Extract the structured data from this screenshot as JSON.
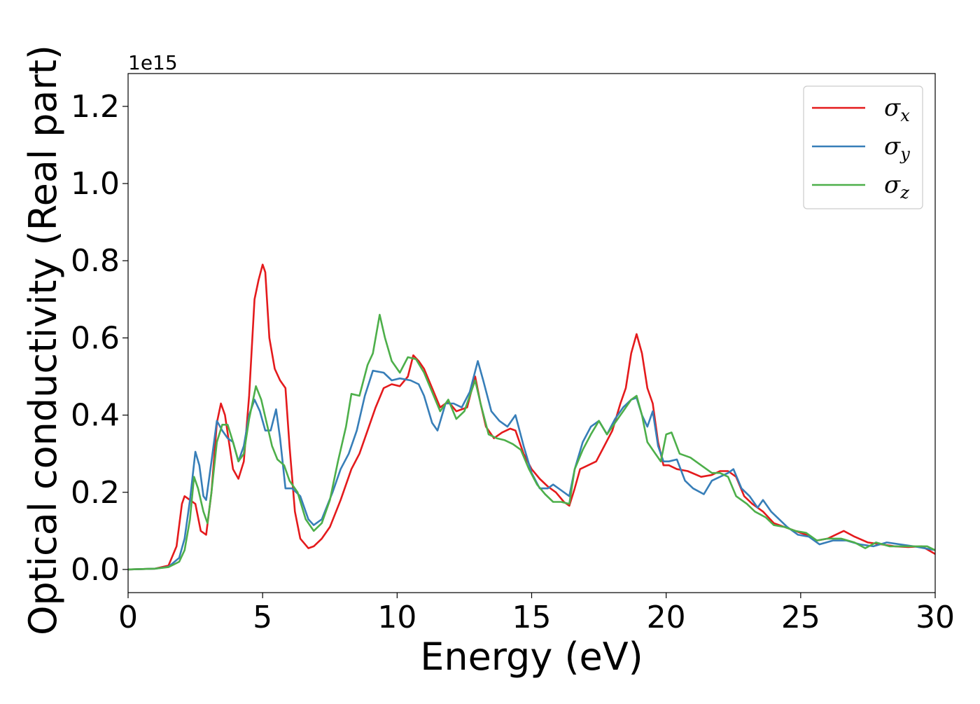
{
  "chart_data": {
    "type": "line",
    "title": "",
    "xlabel": "Energy (eV)",
    "ylabel": "Optical conductivity (Real part)",
    "y_offset_label": "1e15",
    "xlim": [
      0,
      30
    ],
    "ylim": [
      -0.06,
      1.285
    ],
    "x_ticks": [
      0,
      5,
      10,
      15,
      20,
      25,
      30
    ],
    "x_tick_labels": [
      "0",
      "5",
      "10",
      "15",
      "20",
      "25",
      "30"
    ],
    "y_ticks": [
      0.0,
      0.2,
      0.4,
      0.6,
      0.8,
      1.0,
      1.2
    ],
    "y_tick_labels": [
      "0.0",
      "0.2",
      "0.4",
      "0.6",
      "0.8",
      "1.0",
      "1.2"
    ],
    "grid": false,
    "legend_position": "top-right",
    "series": [
      {
        "name": "σx",
        "legend_main": "σ",
        "legend_sub": "x",
        "color": "#e41a1c",
        "points": [
          [
            0,
            0
          ],
          [
            1.0,
            0.002
          ],
          [
            1.5,
            0.01
          ],
          [
            1.8,
            0.06
          ],
          [
            2.0,
            0.17
          ],
          [
            2.1,
            0.19
          ],
          [
            2.3,
            0.18
          ],
          [
            2.5,
            0.17
          ],
          [
            2.7,
            0.1
          ],
          [
            2.9,
            0.09
          ],
          [
            3.1,
            0.2
          ],
          [
            3.3,
            0.38
          ],
          [
            3.45,
            0.43
          ],
          [
            3.6,
            0.4
          ],
          [
            3.75,
            0.33
          ],
          [
            3.9,
            0.26
          ],
          [
            4.1,
            0.235
          ],
          [
            4.3,
            0.28
          ],
          [
            4.5,
            0.45
          ],
          [
            4.7,
            0.7
          ],
          [
            4.85,
            0.75
          ],
          [
            5.0,
            0.79
          ],
          [
            5.1,
            0.77
          ],
          [
            5.25,
            0.6
          ],
          [
            5.45,
            0.52
          ],
          [
            5.65,
            0.49
          ],
          [
            5.85,
            0.47
          ],
          [
            6.0,
            0.32
          ],
          [
            6.2,
            0.15
          ],
          [
            6.4,
            0.08
          ],
          [
            6.7,
            0.055
          ],
          [
            6.9,
            0.06
          ],
          [
            7.2,
            0.08
          ],
          [
            7.5,
            0.11
          ],
          [
            7.9,
            0.18
          ],
          [
            8.3,
            0.26
          ],
          [
            8.6,
            0.3
          ],
          [
            8.9,
            0.36
          ],
          [
            9.2,
            0.42
          ],
          [
            9.5,
            0.47
          ],
          [
            9.8,
            0.48
          ],
          [
            10.1,
            0.475
          ],
          [
            10.4,
            0.5
          ],
          [
            10.6,
            0.555
          ],
          [
            10.8,
            0.54
          ],
          [
            11.0,
            0.52
          ],
          [
            11.3,
            0.47
          ],
          [
            11.6,
            0.42
          ],
          [
            11.9,
            0.435
          ],
          [
            12.2,
            0.41
          ],
          [
            12.6,
            0.42
          ],
          [
            12.9,
            0.5
          ],
          [
            13.1,
            0.43
          ],
          [
            13.3,
            0.37
          ],
          [
            13.6,
            0.34
          ],
          [
            13.9,
            0.355
          ],
          [
            14.2,
            0.365
          ],
          [
            14.4,
            0.36
          ],
          [
            14.7,
            0.3
          ],
          [
            15.0,
            0.26
          ],
          [
            15.3,
            0.235
          ],
          [
            15.6,
            0.215
          ],
          [
            15.9,
            0.2
          ],
          [
            16.2,
            0.175
          ],
          [
            16.4,
            0.165
          ],
          [
            16.6,
            0.21
          ],
          [
            16.8,
            0.26
          ],
          [
            17.1,
            0.27
          ],
          [
            17.4,
            0.28
          ],
          [
            17.7,
            0.32
          ],
          [
            18.0,
            0.36
          ],
          [
            18.3,
            0.43
          ],
          [
            18.5,
            0.47
          ],
          [
            18.7,
            0.56
          ],
          [
            18.9,
            0.61
          ],
          [
            19.1,
            0.56
          ],
          [
            19.3,
            0.47
          ],
          [
            19.5,
            0.43
          ],
          [
            19.7,
            0.33
          ],
          [
            19.9,
            0.27
          ],
          [
            20.1,
            0.27
          ],
          [
            20.4,
            0.26
          ],
          [
            20.8,
            0.255
          ],
          [
            21.3,
            0.24
          ],
          [
            21.7,
            0.245
          ],
          [
            22.0,
            0.255
          ],
          [
            22.3,
            0.255
          ],
          [
            22.6,
            0.24
          ],
          [
            22.9,
            0.19
          ],
          [
            23.2,
            0.17
          ],
          [
            23.6,
            0.15
          ],
          [
            24.0,
            0.12
          ],
          [
            24.4,
            0.11
          ],
          [
            24.8,
            0.1
          ],
          [
            25.2,
            0.09
          ],
          [
            25.6,
            0.075
          ],
          [
            26.0,
            0.08
          ],
          [
            26.6,
            0.1
          ],
          [
            27.0,
            0.085
          ],
          [
            27.5,
            0.07
          ],
          [
            28.0,
            0.065
          ],
          [
            28.5,
            0.06
          ],
          [
            29.0,
            0.058
          ],
          [
            29.5,
            0.06
          ],
          [
            30.0,
            0.04
          ]
        ]
      },
      {
        "name": "σy",
        "legend_main": "σ",
        "legend_sub": "y",
        "color": "#377eb8",
        "points": [
          [
            0,
            0
          ],
          [
            1.0,
            0.002
          ],
          [
            1.5,
            0.007
          ],
          [
            1.9,
            0.03
          ],
          [
            2.1,
            0.08
          ],
          [
            2.3,
            0.18
          ],
          [
            2.5,
            0.305
          ],
          [
            2.65,
            0.27
          ],
          [
            2.8,
            0.19
          ],
          [
            2.9,
            0.18
          ],
          [
            3.1,
            0.28
          ],
          [
            3.3,
            0.385
          ],
          [
            3.5,
            0.36
          ],
          [
            3.7,
            0.34
          ],
          [
            3.9,
            0.33
          ],
          [
            4.1,
            0.28
          ],
          [
            4.3,
            0.32
          ],
          [
            4.5,
            0.4
          ],
          [
            4.7,
            0.44
          ],
          [
            4.9,
            0.41
          ],
          [
            5.1,
            0.36
          ],
          [
            5.3,
            0.36
          ],
          [
            5.5,
            0.415
          ],
          [
            5.65,
            0.34
          ],
          [
            5.85,
            0.21
          ],
          [
            6.1,
            0.21
          ],
          [
            6.4,
            0.19
          ],
          [
            6.7,
            0.13
          ],
          [
            6.9,
            0.115
          ],
          [
            7.2,
            0.13
          ],
          [
            7.6,
            0.2
          ],
          [
            7.9,
            0.26
          ],
          [
            8.2,
            0.3
          ],
          [
            8.5,
            0.36
          ],
          [
            8.8,
            0.45
          ],
          [
            9.1,
            0.515
          ],
          [
            9.5,
            0.51
          ],
          [
            9.8,
            0.49
          ],
          [
            10.1,
            0.495
          ],
          [
            10.5,
            0.49
          ],
          [
            10.8,
            0.48
          ],
          [
            11.0,
            0.45
          ],
          [
            11.3,
            0.38
          ],
          [
            11.5,
            0.36
          ],
          [
            11.8,
            0.43
          ],
          [
            12.1,
            0.43
          ],
          [
            12.4,
            0.42
          ],
          [
            12.7,
            0.46
          ],
          [
            13.0,
            0.54
          ],
          [
            13.2,
            0.49
          ],
          [
            13.5,
            0.41
          ],
          [
            13.8,
            0.385
          ],
          [
            14.1,
            0.37
          ],
          [
            14.4,
            0.4
          ],
          [
            14.7,
            0.32
          ],
          [
            15.0,
            0.25
          ],
          [
            15.3,
            0.21
          ],
          [
            15.6,
            0.21
          ],
          [
            15.8,
            0.22
          ],
          [
            16.1,
            0.205
          ],
          [
            16.4,
            0.19
          ],
          [
            16.6,
            0.26
          ],
          [
            16.9,
            0.33
          ],
          [
            17.2,
            0.37
          ],
          [
            17.5,
            0.385
          ],
          [
            17.8,
            0.35
          ],
          [
            18.1,
            0.39
          ],
          [
            18.4,
            0.42
          ],
          [
            18.7,
            0.44
          ],
          [
            18.9,
            0.445
          ],
          [
            19.1,
            0.4
          ],
          [
            19.3,
            0.37
          ],
          [
            19.5,
            0.41
          ],
          [
            19.7,
            0.32
          ],
          [
            19.9,
            0.28
          ],
          [
            20.1,
            0.28
          ],
          [
            20.4,
            0.285
          ],
          [
            20.7,
            0.23
          ],
          [
            21.0,
            0.21
          ],
          [
            21.4,
            0.195
          ],
          [
            21.7,
            0.23
          ],
          [
            22.0,
            0.24
          ],
          [
            22.3,
            0.25
          ],
          [
            22.5,
            0.26
          ],
          [
            22.8,
            0.21
          ],
          [
            23.1,
            0.19
          ],
          [
            23.4,
            0.16
          ],
          [
            23.6,
            0.18
          ],
          [
            23.9,
            0.15
          ],
          [
            24.2,
            0.13
          ],
          [
            24.5,
            0.11
          ],
          [
            24.9,
            0.09
          ],
          [
            25.3,
            0.085
          ],
          [
            25.7,
            0.065
          ],
          [
            26.2,
            0.075
          ],
          [
            26.7,
            0.075
          ],
          [
            27.2,
            0.065
          ],
          [
            27.7,
            0.06
          ],
          [
            28.2,
            0.07
          ],
          [
            28.7,
            0.065
          ],
          [
            29.2,
            0.06
          ],
          [
            29.6,
            0.055
          ],
          [
            30.0,
            0.05
          ]
        ]
      },
      {
        "name": "σz",
        "legend_main": "σ",
        "legend_sub": "z",
        "color": "#4daf4a",
        "points": [
          [
            0,
            0
          ],
          [
            1.0,
            0.002
          ],
          [
            1.5,
            0.006
          ],
          [
            1.9,
            0.02
          ],
          [
            2.1,
            0.05
          ],
          [
            2.3,
            0.13
          ],
          [
            2.45,
            0.24
          ],
          [
            2.6,
            0.21
          ],
          [
            2.8,
            0.15
          ],
          [
            2.95,
            0.12
          ],
          [
            3.1,
            0.2
          ],
          [
            3.3,
            0.33
          ],
          [
            3.5,
            0.375
          ],
          [
            3.7,
            0.375
          ],
          [
            3.9,
            0.33
          ],
          [
            4.1,
            0.28
          ],
          [
            4.3,
            0.3
          ],
          [
            4.5,
            0.39
          ],
          [
            4.75,
            0.475
          ],
          [
            4.95,
            0.44
          ],
          [
            5.15,
            0.38
          ],
          [
            5.35,
            0.32
          ],
          [
            5.55,
            0.285
          ],
          [
            5.8,
            0.27
          ],
          [
            6.0,
            0.23
          ],
          [
            6.3,
            0.2
          ],
          [
            6.6,
            0.13
          ],
          [
            6.9,
            0.1
          ],
          [
            7.2,
            0.12
          ],
          [
            7.5,
            0.18
          ],
          [
            7.8,
            0.28
          ],
          [
            8.1,
            0.37
          ],
          [
            8.3,
            0.455
          ],
          [
            8.6,
            0.45
          ],
          [
            8.9,
            0.53
          ],
          [
            9.1,
            0.56
          ],
          [
            9.35,
            0.66
          ],
          [
            9.55,
            0.6
          ],
          [
            9.8,
            0.54
          ],
          [
            10.1,
            0.51
          ],
          [
            10.4,
            0.55
          ],
          [
            10.7,
            0.545
          ],
          [
            11.0,
            0.51
          ],
          [
            11.3,
            0.46
          ],
          [
            11.6,
            0.41
          ],
          [
            11.9,
            0.44
          ],
          [
            12.2,
            0.39
          ],
          [
            12.5,
            0.41
          ],
          [
            12.9,
            0.49
          ],
          [
            13.1,
            0.43
          ],
          [
            13.4,
            0.35
          ],
          [
            13.7,
            0.34
          ],
          [
            14.0,
            0.335
          ],
          [
            14.3,
            0.325
          ],
          [
            14.6,
            0.31
          ],
          [
            14.9,
            0.26
          ],
          [
            15.2,
            0.22
          ],
          [
            15.5,
            0.195
          ],
          [
            15.8,
            0.175
          ],
          [
            16.1,
            0.175
          ],
          [
            16.4,
            0.17
          ],
          [
            16.6,
            0.26
          ],
          [
            16.9,
            0.31
          ],
          [
            17.2,
            0.35
          ],
          [
            17.5,
            0.385
          ],
          [
            17.8,
            0.35
          ],
          [
            18.1,
            0.38
          ],
          [
            18.4,
            0.41
          ],
          [
            18.7,
            0.44
          ],
          [
            18.9,
            0.45
          ],
          [
            19.1,
            0.4
          ],
          [
            19.3,
            0.33
          ],
          [
            19.6,
            0.3
          ],
          [
            19.8,
            0.28
          ],
          [
            20.0,
            0.35
          ],
          [
            20.2,
            0.355
          ],
          [
            20.5,
            0.3
          ],
          [
            20.9,
            0.29
          ],
          [
            21.3,
            0.27
          ],
          [
            21.7,
            0.25
          ],
          [
            22.0,
            0.25
          ],
          [
            22.3,
            0.24
          ],
          [
            22.6,
            0.19
          ],
          [
            23.0,
            0.17
          ],
          [
            23.3,
            0.15
          ],
          [
            23.7,
            0.135
          ],
          [
            24.0,
            0.115
          ],
          [
            24.4,
            0.11
          ],
          [
            24.8,
            0.1
          ],
          [
            25.2,
            0.095
          ],
          [
            25.6,
            0.075
          ],
          [
            26.0,
            0.08
          ],
          [
            26.5,
            0.08
          ],
          [
            27.0,
            0.07
          ],
          [
            27.4,
            0.055
          ],
          [
            27.8,
            0.07
          ],
          [
            28.3,
            0.06
          ],
          [
            28.8,
            0.06
          ],
          [
            29.3,
            0.06
          ],
          [
            29.7,
            0.06
          ],
          [
            30.0,
            0.05
          ]
        ]
      }
    ]
  }
}
